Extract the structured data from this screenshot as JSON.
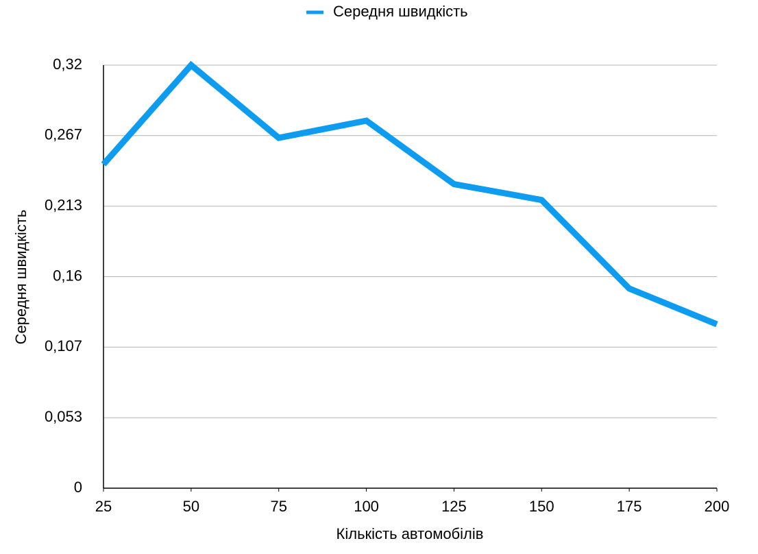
{
  "chart_data": {
    "type": "line",
    "x_label": "Кількість автомобілів",
    "y_label": "Середня швидкість",
    "x": [
      25,
      50,
      75,
      100,
      125,
      150,
      175,
      200
    ],
    "series": [
      {
        "name": "Середня швидкість",
        "color": "#0e9cf0",
        "values": [
          0.245,
          0.32,
          0.265,
          0.278,
          0.23,
          0.218,
          0.151,
          0.124
        ]
      }
    ],
    "xlim": [
      25,
      200
    ],
    "xticks": [
      25,
      50,
      75,
      100,
      125,
      150,
      175,
      200
    ],
    "ylim": [
      0,
      0.32
    ],
    "yticks": [
      0,
      {
        "value": 0.0533,
        "label": "0,053"
      },
      {
        "value": 0.1067,
        "label": "0,107"
      },
      {
        "value": 0.16,
        "label": "0,16"
      },
      {
        "value": 0.2133,
        "label": "0,213"
      },
      {
        "value": 0.2667,
        "label": "0,267"
      },
      {
        "value": 0.32,
        "label": "0,32"
      }
    ],
    "grid": true,
    "legend": "top"
  }
}
